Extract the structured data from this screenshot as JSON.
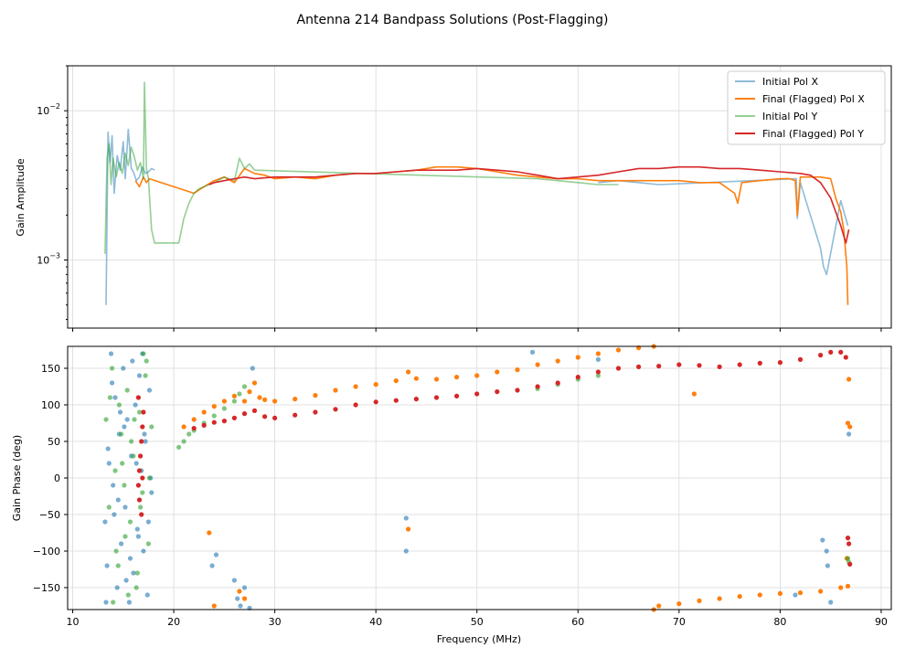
{
  "chart_data": {
    "title": "Antenna 214 Bandpass Solutions (Post-Flagging)",
    "xlabel": "Frequency (MHz)",
    "xlim": [
      9.5,
      91
    ],
    "x_ticks": [
      10,
      20,
      30,
      40,
      50,
      60,
      70,
      80,
      90
    ],
    "series_styles": [
      {
        "name": "Initial Pol X",
        "color": "#1f77b4",
        "alpha": 0.5
      },
      {
        "name": "Final (Flagged) Pol X",
        "color": "#ff7f0e",
        "alpha": 1.0
      },
      {
        "name": "Initial Pol Y",
        "color": "#2ca02c",
        "alpha": 0.5
      },
      {
        "name": "Final (Flagged) Pol Y",
        "color": "#d62728",
        "alpha": 1.0
      }
    ],
    "legend_position": "top-right",
    "amplitude": {
      "type": "line",
      "ylabel": "Gain Amplitude",
      "yscale": "log",
      "ylim": [
        0.00035,
        0.02
      ],
      "y_ticks": [
        {
          "value": 0.01,
          "label_base": "10",
          "label_exp": "−2"
        },
        {
          "value": 0.001,
          "label_base": "10",
          "label_exp": "−3"
        }
      ],
      "series": [
        {
          "name": "Initial Pol X",
          "x": [
            13.3,
            13.5,
            13.7,
            13.9,
            14.1,
            14.4,
            14.7,
            15.0,
            15.2,
            15.5,
            15.8,
            16.0,
            16.3,
            16.6,
            16.9,
            17.2,
            17.5,
            17.8,
            18.1
          ],
          "y": [
            0.0005,
            0.0072,
            0.0045,
            0.0068,
            0.0028,
            0.005,
            0.004,
            0.0062,
            0.0035,
            0.0075,
            0.0041,
            0.0039,
            0.0034,
            0.0036,
            0.0042,
            0.0038,
            0.0039,
            0.0041,
            0.004
          ]
        },
        {
          "name": "Initial Pol X",
          "x": [
            62,
            64,
            66,
            68,
            81.6,
            81.7,
            82,
            84,
            84.3,
            84.6,
            86,
            86.7
          ],
          "y": [
            0.0033,
            0.0034,
            0.0033,
            0.0032,
            0.0035,
            0.0019,
            0.0033,
            0.0012,
            0.0009,
            0.0008,
            0.0025,
            0.0017
          ]
        },
        {
          "name": "Final (Flagged) Pol X",
          "x": [
            16.2,
            16.6,
            17.0,
            17.3,
            17.6,
            22,
            23,
            24,
            25,
            26,
            27,
            28,
            29,
            30,
            32,
            34,
            36,
            38,
            40,
            42,
            44,
            46,
            48,
            50,
            52,
            54,
            56,
            58,
            60,
            62,
            64,
            66,
            68,
            70,
            72,
            73,
            74,
            75.5,
            75.8,
            76.2,
            78,
            80,
            81,
            81.5,
            81.7,
            82,
            84,
            85,
            85.5,
            86,
            86.3,
            86.6,
            86.7
          ],
          "y": [
            0.0034,
            0.0031,
            0.0036,
            0.0033,
            0.0035,
            0.0028,
            0.0031,
            0.0034,
            0.0036,
            0.0033,
            0.0041,
            0.0038,
            0.0037,
            0.0035,
            0.0036,
            0.0035,
            0.0037,
            0.0038,
            0.0038,
            0.0039,
            0.004,
            0.0042,
            0.0042,
            0.0041,
            0.0039,
            0.0037,
            0.0036,
            0.0035,
            0.0035,
            0.0034,
            0.0034,
            0.0034,
            0.0034,
            0.0034,
            0.0033,
            0.0033,
            0.0033,
            0.0028,
            0.0024,
            0.0033,
            0.0034,
            0.0035,
            0.0035,
            0.0034,
            0.002,
            0.0036,
            0.0036,
            0.0035,
            0.0026,
            0.0021,
            0.0016,
            0.0009,
            0.0005
          ]
        },
        {
          "name": "Initial Pol Y",
          "x": [
            13.2,
            13.4,
            13.6,
            13.8,
            14.0,
            14.3,
            14.6,
            14.9,
            15.2,
            15.5,
            15.8,
            16.1,
            16.4,
            16.7,
            17.0,
            17.1,
            17.3,
            17.5,
            17.8,
            18.1,
            20.5,
            21,
            21.5,
            22,
            22.5,
            23,
            24,
            25,
            26,
            26.5,
            27,
            27.5,
            28,
            56,
            58,
            60,
            62,
            64
          ],
          "y": [
            0.0011,
            0.0048,
            0.006,
            0.0032,
            0.0048,
            0.0036,
            0.0045,
            0.0038,
            0.0052,
            0.0043,
            0.0057,
            0.0049,
            0.004,
            0.0045,
            0.0035,
            0.0155,
            0.0041,
            0.0035,
            0.0016,
            0.0013,
            0.0013,
            0.0019,
            0.0024,
            0.0028,
            0.003,
            0.0031,
            0.0033,
            0.0036,
            0.0034,
            0.0048,
            0.0041,
            0.0044,
            0.004,
            0.0035,
            0.0034,
            0.0033,
            0.0032,
            0.0032
          ]
        },
        {
          "name": "Final (Flagged) Pol Y",
          "x": [
            23.5,
            24,
            25,
            26,
            27,
            28,
            30,
            32,
            34,
            36,
            38,
            40,
            42,
            44,
            46,
            48,
            50,
            52,
            54,
            56,
            58,
            60,
            62,
            64,
            66,
            68,
            70,
            72,
            74,
            76,
            78,
            80,
            82,
            83,
            84,
            85,
            85.5,
            86,
            86.5,
            86.8
          ],
          "y": [
            0.0032,
            0.0033,
            0.0034,
            0.0035,
            0.0036,
            0.0035,
            0.0036,
            0.0036,
            0.0036,
            0.0037,
            0.0038,
            0.0038,
            0.0039,
            0.004,
            0.004,
            0.004,
            0.0041,
            0.004,
            0.0039,
            0.0037,
            0.0035,
            0.0036,
            0.0037,
            0.0039,
            0.0041,
            0.0041,
            0.0042,
            0.0042,
            0.0041,
            0.0041,
            0.004,
            0.0039,
            0.0038,
            0.0037,
            0.0033,
            0.0026,
            0.0021,
            0.0017,
            0.0013,
            0.0016
          ]
        }
      ]
    },
    "phase": {
      "type": "scatter",
      "ylabel": "Gain Phase (deg)",
      "ylim": [
        -180,
        180
      ],
      "y_ticks": [
        150,
        100,
        50,
        0,
        -50,
        -100,
        -150
      ],
      "series": [
        {
          "name": "Initial Pol X",
          "x": [
            13.2,
            13.4,
            13.6,
            13.8,
            14.0,
            14.2,
            14.4,
            14.6,
            14.8,
            15.0,
            15.2,
            15.4,
            15.6,
            15.8,
            16.0,
            16.2,
            16.4,
            16.6,
            16.8,
            17.0,
            17.2,
            17.4,
            17.6,
            17.8,
            13.5,
            14.1,
            14.7,
            15.3,
            15.9,
            16.5,
            17.1,
            17.7,
            13.3,
            13.9,
            14.5,
            15.1,
            15.7,
            16.3,
            16.9,
            17.5,
            26.0,
            26.3,
            26.6,
            27.0,
            23.8,
            24.2,
            43.0,
            43.0,
            55.5,
            62.0,
            81.5,
            84.2,
            84.6,
            84.7,
            85.0,
            86.8,
            27.5,
            27.8
          ],
          "y": [
            -60,
            -120,
            20,
            170,
            -10,
            110,
            -150,
            60,
            -90,
            150,
            -40,
            80,
            -170,
            30,
            -130,
            100,
            -70,
            140,
            10,
            -100,
            50,
            -160,
            120,
            -20,
            40,
            -50,
            90,
            -140,
            160,
            -80,
            60,
            0,
            -170,
            130,
            -30,
            70,
            -110,
            20,
            170,
            -60,
            -140,
            -165,
            -175,
            -150,
            -120,
            -105,
            -55,
            -100,
            172,
            162,
            -160,
            -85,
            -100,
            -120,
            -170,
            60,
            -178,
            150
          ]
        },
        {
          "name": "Final (Flagged) Pol X",
          "x": [
            21,
            22,
            23,
            24,
            25,
            26,
            27,
            27.5,
            28,
            28.5,
            29,
            30,
            32,
            34,
            36,
            38,
            40,
            42,
            44,
            46,
            48,
            50,
            52,
            54,
            56,
            58,
            60,
            62,
            64,
            66,
            67.5,
            43.2,
            43.2,
            24,
            23.5,
            26.5,
            27,
            71.5,
            67.5,
            68,
            70,
            72,
            74,
            76,
            78,
            80,
            82,
            84,
            86,
            86.7,
            86.8,
            86.6,
            86.7,
            86.9
          ],
          "y": [
            70,
            80,
            90,
            98,
            105,
            112,
            105,
            118,
            130,
            110,
            107,
            105,
            108,
            113,
            120,
            125,
            128,
            133,
            136,
            135,
            138,
            140,
            145,
            148,
            155,
            160,
            165,
            170,
            175,
            178,
            180,
            145,
            -70,
            -175,
            -75,
            -155,
            -165,
            115,
            -180,
            -175,
            -172,
            -168,
            -165,
            -162,
            -160,
            -158,
            -157,
            -155,
            -150,
            -148,
            135,
            -110,
            75,
            70
          ]
        },
        {
          "name": "Initial Pol Y",
          "x": [
            13.3,
            13.6,
            13.9,
            14.2,
            14.5,
            14.8,
            15.1,
            15.4,
            15.7,
            16.0,
            16.3,
            16.6,
            16.9,
            17.2,
            17.5,
            17.8,
            14.0,
            14.6,
            15.2,
            15.8,
            16.4,
            17.0,
            17.6,
            13.7,
            14.3,
            14.9,
            15.5,
            16.1,
            16.7,
            17.3,
            20.5,
            21,
            21.5,
            22,
            23,
            24,
            25,
            26,
            26.5,
            27,
            56,
            58,
            60,
            62,
            86.7,
            86.8
          ],
          "y": [
            80,
            -40,
            150,
            10,
            -120,
            60,
            -10,
            120,
            -60,
            30,
            -150,
            90,
            -20,
            140,
            -90,
            70,
            -170,
            100,
            -80,
            50,
            -130,
            170,
            0,
            110,
            -100,
            20,
            -160,
            80,
            -40,
            160,
            42,
            50,
            60,
            65,
            75,
            85,
            95,
            105,
            115,
            125,
            122,
            128,
            135,
            140,
            -110,
            -115
          ]
        },
        {
          "name": "Final (Flagged) Pol Y",
          "x": [
            16.5,
            16.6,
            16.7,
            16.8,
            16.9,
            17.0,
            16.6,
            16.8,
            16.5,
            16.9,
            22,
            23,
            24,
            25,
            26,
            27,
            28,
            29,
            30,
            32,
            34,
            36,
            38,
            40,
            42,
            44,
            46,
            48,
            50,
            52,
            54,
            56,
            58,
            60,
            62,
            64,
            66,
            68,
            70,
            72,
            74,
            76,
            78,
            80,
            82,
            84,
            85,
            86,
            86.5,
            86.7,
            86.8,
            86.9
          ],
          "y": [
            -10,
            10,
            30,
            50,
            70,
            90,
            -30,
            -50,
            110,
            0,
            68,
            72,
            76,
            78,
            82,
            88,
            92,
            84,
            82,
            86,
            90,
            94,
            100,
            104,
            106,
            108,
            110,
            112,
            115,
            118,
            120,
            125,
            130,
            138,
            145,
            150,
            152,
            153,
            155,
            154,
            152,
            155,
            157,
            158,
            162,
            168,
            172,
            172,
            165,
            -82,
            -90,
            -118
          ]
        }
      ]
    }
  }
}
